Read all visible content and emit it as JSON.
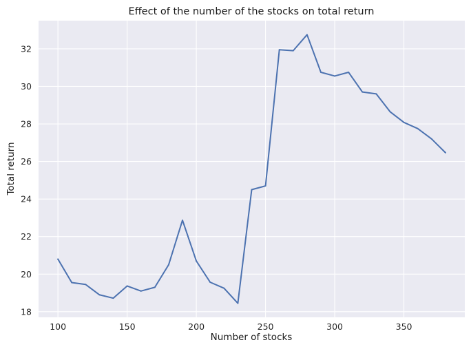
{
  "chart_data": {
    "type": "line",
    "title": "Effect of the number of the stocks on total return",
    "xlabel": "Number of stocks",
    "ylabel": "Total return",
    "x": [
      100,
      110,
      120,
      130,
      140,
      150,
      160,
      170,
      180,
      190,
      200,
      210,
      220,
      230,
      240,
      250,
      260,
      270,
      280,
      290,
      300,
      310,
      320,
      330,
      340,
      350,
      360,
      370,
      380
    ],
    "series": [
      {
        "values": [
          20.8,
          19.55,
          19.45,
          18.9,
          18.72,
          19.37,
          19.1,
          19.3,
          20.5,
          22.87,
          20.7,
          19.57,
          19.25,
          18.45,
          24.5,
          24.7,
          31.95,
          31.9,
          32.75,
          30.75,
          30.55,
          30.75,
          29.7,
          29.6,
          28.65,
          28.08,
          27.75,
          27.2,
          26.47
        ],
        "color": "#4c72b0"
      }
    ],
    "xticks": [
      100,
      150,
      200,
      250,
      300,
      350
    ],
    "yticks": [
      18,
      20,
      22,
      24,
      26,
      28,
      30,
      32
    ],
    "xlim": [
      86,
      394
    ],
    "ylim": [
      17.7,
      33.5
    ],
    "grid": true,
    "background_color": "#eaeaf2",
    "grid_color": "#ffffff"
  }
}
